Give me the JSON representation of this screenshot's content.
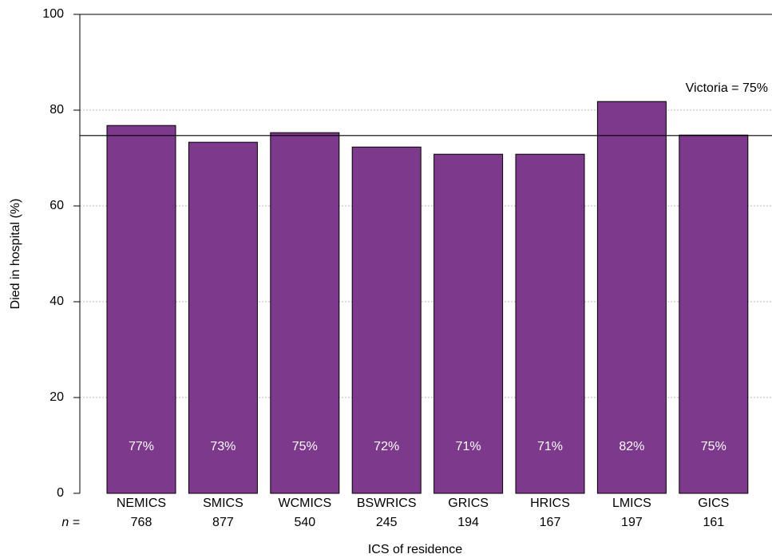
{
  "chart_data": {
    "type": "bar",
    "x_label": "ICS of residence",
    "y_label": "Died in hospital (%)",
    "categories": [
      "NEMICS",
      "SMICS",
      "WCMICS",
      "BSWRICS",
      "GRICS",
      "HRICS",
      "LMICS",
      "GICS"
    ],
    "values": [
      76.8,
      73.3,
      75.3,
      72.3,
      70.8,
      70.8,
      81.8,
      74.8
    ],
    "value_labels": [
      "77%",
      "73%",
      "75%",
      "72%",
      "71%",
      "71%",
      "82%",
      "75%"
    ],
    "n_label": "n =",
    "n_values": [
      768,
      877,
      540,
      245,
      194,
      167,
      197,
      161
    ],
    "reference": {
      "value": 74.7,
      "label": "Victoria = 75%"
    },
    "color": "#7d398b",
    "ylim": [
      0,
      100
    ],
    "yticks": [
      0,
      20,
      40,
      60,
      80,
      100
    ],
    "grid": true
  }
}
